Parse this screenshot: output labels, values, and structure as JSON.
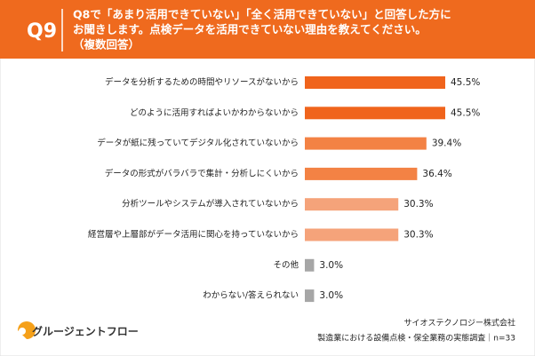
{
  "chart_data": {
    "type": "barh",
    "question_number": "Q9",
    "title": [
      "Q8で「あまり活用できていない」「全く活用できていない」と回答した方に",
      "お聞きします。点検データを活用できていない理由を教えてください。",
      "（複数回答）"
    ],
    "categories": [
      "データを分析するための時間やリソースがないから",
      "どのように活用すればよいかわからないから",
      "データが紙に残っていてデジタル化されていないから",
      "データの形式がバラバラで集計・分析しにくいから",
      "分析ツールやシステムが導入されていないから",
      "経営層や上層部がデータ活用に関心を持っていないから",
      "その他",
      "わからない/答えられない"
    ],
    "values": [
      45.5,
      45.5,
      39.4,
      36.4,
      30.3,
      30.3,
      3.0,
      3.0
    ],
    "value_labels": [
      "45.5%",
      "45.5%",
      "39.4%",
      "36.4%",
      "30.3%",
      "30.3%",
      "3.0%",
      "3.0%"
    ],
    "colors": [
      "#f0641c",
      "#f0641c",
      "#f38244",
      "#f38244",
      "#f5a37a",
      "#f5a37a",
      "#a6a6a6",
      "#a6a6a6"
    ],
    "logo_text": "グルージェントフロー",
    "source": [
      "サイオステクノロジー株式会社",
      "製造業における設備点検・保全業務の実態調査｜n=33"
    ]
  }
}
